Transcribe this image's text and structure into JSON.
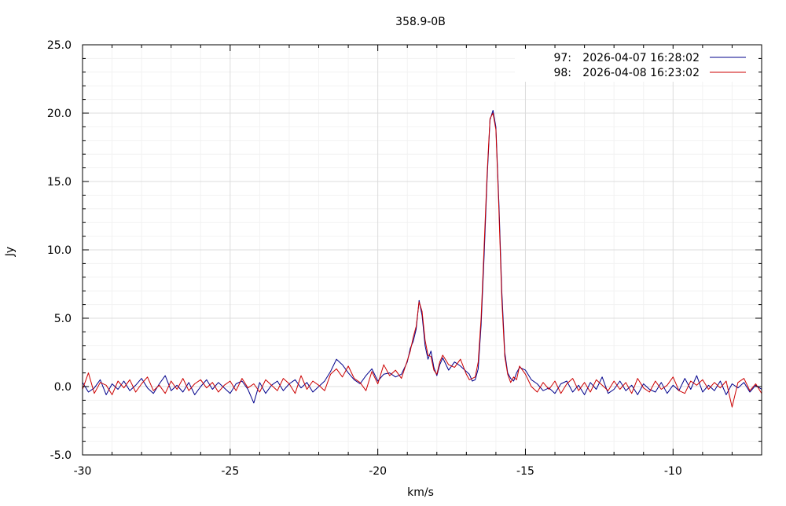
{
  "chart_data": {
    "type": "line",
    "title": "358.9-0B",
    "xlabel": "km/s",
    "ylabel": "Jy",
    "xlim": [
      -30,
      -7
    ],
    "ylim": [
      -5,
      25
    ],
    "grid": true,
    "legend_position": "top-right",
    "x_ticks": [
      {
        "value": -30,
        "label": "-30"
      },
      {
        "value": -25,
        "label": "-25"
      },
      {
        "value": -20,
        "label": "-20"
      },
      {
        "value": -15,
        "label": "-15"
      },
      {
        "value": -10,
        "label": "-10"
      }
    ],
    "y_ticks": [
      {
        "value": -5,
        "label": "-5.0"
      },
      {
        "value": 0,
        "label": "0.0"
      },
      {
        "value": 5,
        "label": "5.0"
      },
      {
        "value": 10,
        "label": "10.0"
      },
      {
        "value": 15,
        "label": "15.0"
      },
      {
        "value": 20,
        "label": "20.0"
      },
      {
        "value": 25,
        "label": "25.0"
      }
    ],
    "series": [
      {
        "id": "97:",
        "date": "2026-04-07 16:28:02",
        "color": "#00008b",
        "x": [
          -30.0,
          -29.8,
          -29.6,
          -29.4,
          -29.2,
          -29.0,
          -28.8,
          -28.6,
          -28.4,
          -28.2,
          -28.0,
          -27.8,
          -27.6,
          -27.4,
          -27.2,
          -27.0,
          -26.8,
          -26.6,
          -26.4,
          -26.2,
          -26.0,
          -25.8,
          -25.6,
          -25.4,
          -25.2,
          -25.0,
          -24.8,
          -24.6,
          -24.4,
          -24.2,
          -24.0,
          -23.8,
          -23.6,
          -23.4,
          -23.2,
          -23.0,
          -22.8,
          -22.6,
          -22.4,
          -22.2,
          -22.0,
          -21.8,
          -21.6,
          -21.4,
          -21.2,
          -21.0,
          -20.8,
          -20.6,
          -20.4,
          -20.2,
          -20.0,
          -19.8,
          -19.6,
          -19.4,
          -19.2,
          -19.0,
          -18.9,
          -18.8,
          -18.7,
          -18.6,
          -18.5,
          -18.4,
          -18.3,
          -18.2,
          -18.1,
          -18.0,
          -17.9,
          -17.8,
          -17.6,
          -17.4,
          -17.2,
          -17.0,
          -16.9,
          -16.8,
          -16.7,
          -16.6,
          -16.5,
          -16.4,
          -16.3,
          -16.2,
          -16.1,
          -16.0,
          -15.9,
          -15.8,
          -15.7,
          -15.6,
          -15.5,
          -15.4,
          -15.3,
          -15.2,
          -15.0,
          -14.8,
          -14.6,
          -14.4,
          -14.2,
          -14.0,
          -13.8,
          -13.6,
          -13.4,
          -13.2,
          -13.0,
          -12.8,
          -12.6,
          -12.4,
          -12.2,
          -12.0,
          -11.8,
          -11.6,
          -11.4,
          -11.2,
          -11.0,
          -10.8,
          -10.6,
          -10.4,
          -10.2,
          -10.0,
          -9.8,
          -9.6,
          -9.4,
          -9.2,
          -9.0,
          -8.8,
          -8.6,
          -8.4,
          -8.2,
          -8.0,
          -7.8,
          -7.6,
          -7.4,
          -7.2,
          -7.0
        ],
        "y": [
          0.3,
          -0.4,
          -0.1,
          0.5,
          -0.6,
          0.2,
          -0.2,
          0.4,
          -0.3,
          0.1,
          0.6,
          -0.1,
          -0.5,
          0.2,
          0.8,
          -0.3,
          0.1,
          -0.4,
          0.3,
          -0.6,
          0.0,
          0.5,
          -0.2,
          0.3,
          -0.1,
          -0.5,
          0.2,
          0.4,
          -0.2,
          -1.2,
          0.3,
          -0.5,
          0.1,
          0.4,
          -0.3,
          0.2,
          0.5,
          -0.1,
          0.3,
          -0.4,
          0.0,
          0.4,
          1.1,
          2.0,
          1.6,
          1.0,
          0.5,
          0.2,
          0.8,
          1.3,
          0.4,
          0.9,
          1.0,
          0.7,
          0.9,
          1.8,
          2.8,
          3.3,
          4.2,
          6.3,
          5.2,
          3.0,
          2.0,
          2.6,
          1.4,
          0.8,
          1.6,
          2.1,
          1.2,
          1.8,
          1.5,
          1.1,
          0.9,
          0.4,
          0.5,
          1.3,
          4.5,
          9.5,
          15.0,
          19.5,
          20.2,
          19.0,
          13.5,
          7.0,
          2.5,
          1.0,
          0.6,
          0.4,
          1.0,
          1.4,
          1.2,
          0.5,
          0.2,
          -0.3,
          -0.1,
          -0.5,
          0.2,
          0.4,
          -0.4,
          0.1,
          -0.6,
          0.3,
          -0.2,
          0.7,
          -0.5,
          -0.2,
          0.4,
          -0.3,
          0.1,
          -0.6,
          0.2,
          -0.2,
          -0.4,
          0.3,
          -0.5,
          0.1,
          -0.3,
          0.6,
          -0.2,
          0.8,
          -0.4,
          0.1,
          -0.3,
          0.4,
          -0.6,
          0.2,
          -0.1,
          0.3,
          -0.4,
          0.1,
          -0.2
        ]
      },
      {
        "id": "98:",
        "date": "2026-04-08 16:23:02",
        "color": "#cc0000",
        "x": [
          -30.0,
          -29.8,
          -29.6,
          -29.4,
          -29.2,
          -29.0,
          -28.8,
          -28.6,
          -28.4,
          -28.2,
          -28.0,
          -27.8,
          -27.6,
          -27.4,
          -27.2,
          -27.0,
          -26.8,
          -26.6,
          -26.4,
          -26.2,
          -26.0,
          -25.8,
          -25.6,
          -25.4,
          -25.2,
          -25.0,
          -24.8,
          -24.6,
          -24.4,
          -24.2,
          -24.0,
          -23.8,
          -23.6,
          -23.4,
          -23.2,
          -23.0,
          -22.8,
          -22.6,
          -22.4,
          -22.2,
          -22.0,
          -21.8,
          -21.6,
          -21.4,
          -21.2,
          -21.0,
          -20.8,
          -20.6,
          -20.4,
          -20.2,
          -20.0,
          -19.8,
          -19.6,
          -19.4,
          -19.2,
          -19.0,
          -18.9,
          -18.8,
          -18.7,
          -18.6,
          -18.5,
          -18.4,
          -18.3,
          -18.2,
          -18.1,
          -18.0,
          -17.9,
          -17.8,
          -17.6,
          -17.4,
          -17.2,
          -17.0,
          -16.9,
          -16.8,
          -16.7,
          -16.6,
          -16.5,
          -16.4,
          -16.3,
          -16.2,
          -16.1,
          -16.0,
          -15.9,
          -15.8,
          -15.7,
          -15.6,
          -15.5,
          -15.4,
          -15.3,
          -15.2,
          -15.0,
          -14.8,
          -14.6,
          -14.4,
          -14.2,
          -14.0,
          -13.8,
          -13.6,
          -13.4,
          -13.2,
          -13.0,
          -12.8,
          -12.6,
          -12.4,
          -12.2,
          -12.0,
          -11.8,
          -11.6,
          -11.4,
          -11.2,
          -11.0,
          -10.8,
          -10.6,
          -10.4,
          -10.2,
          -10.0,
          -9.8,
          -9.6,
          -9.4,
          -9.2,
          -9.0,
          -8.8,
          -8.6,
          -8.4,
          -8.2,
          -8.0,
          -7.8,
          -7.6,
          -7.4,
          -7.2,
          -7.0
        ],
        "y": [
          -0.2,
          1.0,
          -0.5,
          0.3,
          0.1,
          -0.6,
          0.4,
          -0.1,
          0.5,
          -0.4,
          0.2,
          0.7,
          -0.3,
          0.1,
          -0.5,
          0.4,
          -0.2,
          0.6,
          -0.3,
          0.2,
          0.5,
          -0.1,
          0.3,
          -0.4,
          0.1,
          0.4,
          -0.3,
          0.6,
          -0.1,
          0.2,
          -0.4,
          0.5,
          0.1,
          -0.3,
          0.6,
          0.2,
          -0.5,
          0.8,
          -0.2,
          0.4,
          0.1,
          -0.3,
          0.9,
          1.3,
          0.7,
          1.5,
          0.6,
          0.3,
          -0.3,
          1.1,
          0.2,
          1.6,
          0.8,
          1.2,
          0.6,
          1.9,
          2.6,
          3.6,
          4.4,
          6.2,
          5.5,
          3.4,
          2.3,
          2.2,
          1.2,
          0.9,
          1.8,
          2.3,
          1.6,
          1.4,
          2.0,
          0.9,
          0.5,
          0.6,
          0.7,
          1.8,
          5.0,
          10.2,
          15.4,
          19.6,
          20.0,
          18.8,
          13.0,
          6.4,
          2.2,
          0.9,
          0.3,
          0.7,
          0.5,
          1.5,
          0.9,
          0.0,
          -0.4,
          0.3,
          -0.2,
          0.4,
          -0.5,
          0.2,
          0.6,
          -0.3,
          0.3,
          -0.4,
          0.5,
          0.1,
          -0.3,
          0.4,
          -0.2,
          0.3,
          -0.5,
          0.6,
          -0.1,
          -0.4,
          0.4,
          -0.2,
          0.1,
          0.7,
          -0.3,
          -0.5,
          0.4,
          0.1,
          0.5,
          -0.2,
          0.3,
          -0.1,
          0.4,
          -1.5,
          0.3,
          0.6,
          -0.3,
          0.2,
          -0.5
        ]
      }
    ]
  }
}
